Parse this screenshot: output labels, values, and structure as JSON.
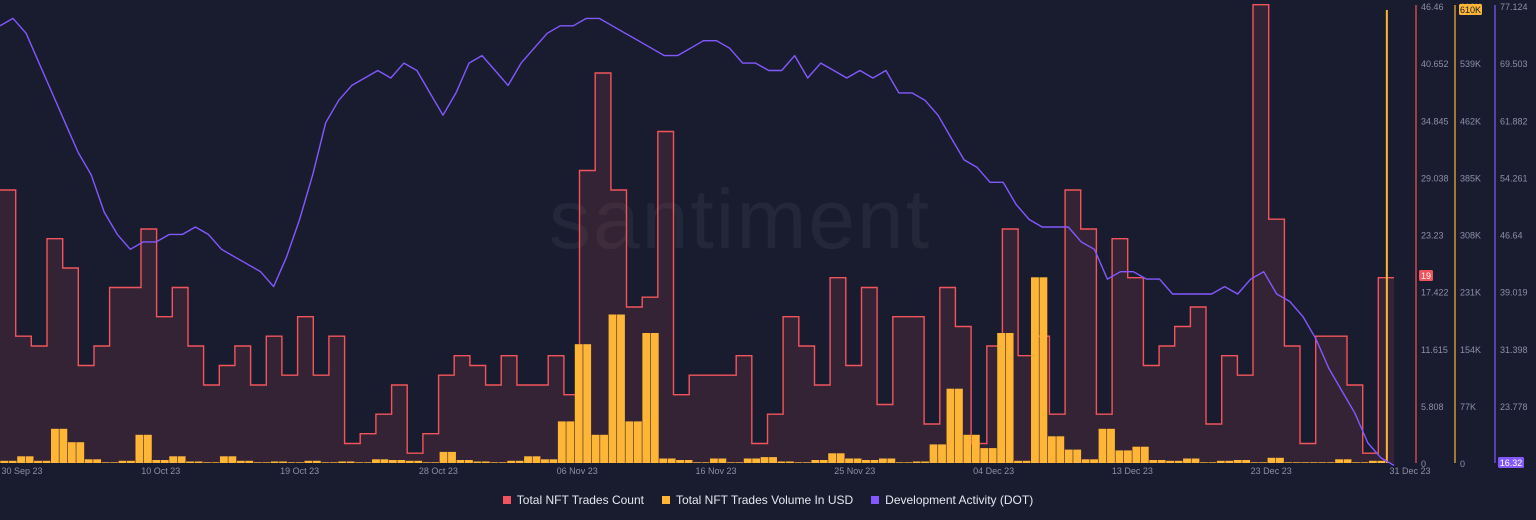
{
  "watermark": "santiment",
  "chart_data": {
    "type": "bar+line",
    "x_ticks": [
      "30 Sep 23",
      "10 Oct 23",
      "19 Oct 23",
      "28 Oct 23",
      "06 Nov 23",
      "16 Nov 23",
      "25 Nov 23",
      "04 Dec 23",
      "13 Dec 23",
      "23 Dec 23",
      "31 Dec 23"
    ],
    "x_range": [
      "30 Sep 23",
      "31 Dec 23"
    ],
    "axes": {
      "count": {
        "ticks": [
          "46.46",
          "40.652",
          "34.845",
          "29.038",
          "23.23",
          "17.422",
          "11.615",
          "5.808",
          "0"
        ],
        "ylim": [
          0,
          46.46
        ],
        "color": "#f2545b",
        "badge": "19"
      },
      "volume": {
        "ticks": [
          "610K",
          "539K",
          "462K",
          "385K",
          "308K",
          "231K",
          "154K",
          "77K",
          "0"
        ],
        "ylim": [
          0,
          610000
        ],
        "color": "#ffb636",
        "badge": "610K"
      },
      "dev": {
        "ticks": [
          "77.124",
          "69.503",
          "61.882",
          "54.261",
          "46.64",
          "39.019",
          "31.398",
          "23.778",
          "16.32"
        ],
        "ylim": [
          16.32,
          77.124
        ],
        "color": "#8358ff",
        "badge": "16.32"
      }
    },
    "legend_position": "bottom-center",
    "grid": false,
    "series": [
      {
        "name": "Total NFT Trades Count",
        "type": "step-area",
        "color": "#f2545b",
        "values": [
          28,
          28,
          13,
          13,
          12,
          12,
          23,
          23,
          20,
          20,
          10,
          10,
          12,
          12,
          18,
          18,
          18,
          18,
          24,
          24,
          15,
          15,
          18,
          18,
          12,
          12,
          8,
          8,
          10,
          10,
          12,
          12,
          8,
          8,
          13,
          13,
          9,
          9,
          15,
          15,
          9,
          9,
          13,
          13,
          2,
          2,
          3,
          3,
          5,
          5,
          8,
          8,
          1,
          1,
          3,
          3,
          9,
          9,
          11,
          11,
          10,
          10,
          8,
          8,
          11,
          11,
          8,
          8,
          8,
          8,
          11,
          11,
          7,
          7,
          30,
          30,
          40,
          40,
          28,
          28,
          16,
          16,
          17,
          17,
          34,
          34,
          7,
          7,
          9,
          9,
          9,
          9,
          9,
          9,
          11,
          11,
          2,
          2,
          5,
          5,
          15,
          15,
          12,
          12,
          8,
          8,
          19,
          19,
          10,
          10,
          18,
          18,
          6,
          6,
          15,
          15,
          15,
          15,
          4,
          4,
          18,
          18,
          14,
          14,
          2,
          2,
          12,
          12,
          24,
          24,
          11,
          11,
          13,
          13,
          5,
          5,
          28,
          28,
          24,
          24,
          5,
          5,
          23,
          23,
          19,
          19,
          10,
          10,
          12,
          12,
          14,
          14,
          16,
          16,
          4,
          4,
          11,
          11,
          9,
          9,
          47,
          47,
          25,
          25,
          12,
          12,
          2,
          2,
          13,
          13,
          13,
          13,
          8,
          8,
          1,
          1,
          19,
          19
        ]
      },
      {
        "name": "Total NFT Trades Volume In USD",
        "type": "bar",
        "color": "#ffb636",
        "values": [
          3000,
          3000,
          9000,
          9000,
          3000,
          3000,
          46000,
          46000,
          28000,
          28000,
          5000,
          5000,
          1000,
          1000,
          3000,
          3000,
          38000,
          38000,
          4000,
          4000,
          9000,
          9000,
          2000,
          2000,
          1000,
          1000,
          9000,
          9000,
          3000,
          3000,
          1000,
          1000,
          2000,
          2000,
          1000,
          1000,
          3000,
          3000,
          1000,
          1000,
          2000,
          2000,
          1000,
          1000,
          5000,
          5000,
          4000,
          4000,
          3000,
          3000,
          1000,
          1000,
          15000,
          15000,
          4000,
          4000,
          2000,
          2000,
          1000,
          1000,
          3000,
          3000,
          9000,
          9000,
          5000,
          5000,
          56000,
          56000,
          160000,
          160000,
          38000,
          38000,
          200000,
          200000,
          56000,
          56000,
          175000,
          175000,
          6000,
          6000,
          4000,
          4000,
          1000,
          1000,
          6000,
          6000,
          1000,
          1000,
          6000,
          6000,
          8000,
          8000,
          2000,
          2000,
          1000,
          1000,
          4000,
          4000,
          13000,
          13000,
          6000,
          6000,
          4000,
          4000,
          6000,
          6000,
          1000,
          1000,
          2000,
          2000,
          25000,
          25000,
          100000,
          100000,
          38000,
          38000,
          20000,
          20000,
          175000,
          175000,
          3000,
          3000,
          250000,
          250000,
          36000,
          36000,
          18000,
          18000,
          5000,
          5000,
          46000,
          46000,
          17000,
          17000,
          22000,
          22000,
          4000,
          4000,
          3000,
          3000,
          6000,
          6000,
          1000,
          1000,
          3000,
          3000,
          4000,
          4000,
          1000,
          1000,
          7000,
          7000,
          1000,
          1000,
          1000,
          1000,
          1000,
          1000,
          5000,
          5000,
          1000,
          1000,
          3000,
          3000,
          610000
        ]
      },
      {
        "name": "Development Activity (DOT)",
        "type": "line",
        "color": "#8358ff",
        "values": [
          75,
          76,
          74,
          70,
          66,
          62,
          58,
          55,
          50,
          47,
          45,
          46,
          46,
          47,
          47,
          48,
          47,
          45,
          44,
          43,
          42,
          40,
          44,
          49,
          55,
          62,
          65,
          67,
          68,
          69,
          68,
          70,
          69,
          66,
          63,
          66,
          70,
          71,
          69,
          67,
          70,
          72,
          74,
          75,
          75,
          76,
          76,
          75,
          74,
          73,
          72,
          71,
          71,
          72,
          73,
          73,
          72,
          70,
          70,
          69,
          69,
          71,
          68,
          70,
          69,
          68,
          69,
          68,
          69,
          66,
          66,
          65,
          63,
          60,
          57,
          56,
          54,
          54,
          51,
          49,
          48,
          48,
          48,
          46,
          45,
          41,
          42,
          42,
          41,
          41,
          39,
          39,
          39,
          39,
          40,
          39,
          41,
          42,
          39,
          38,
          36,
          33,
          29,
          26,
          23,
          19,
          17,
          16
        ]
      }
    ]
  }
}
